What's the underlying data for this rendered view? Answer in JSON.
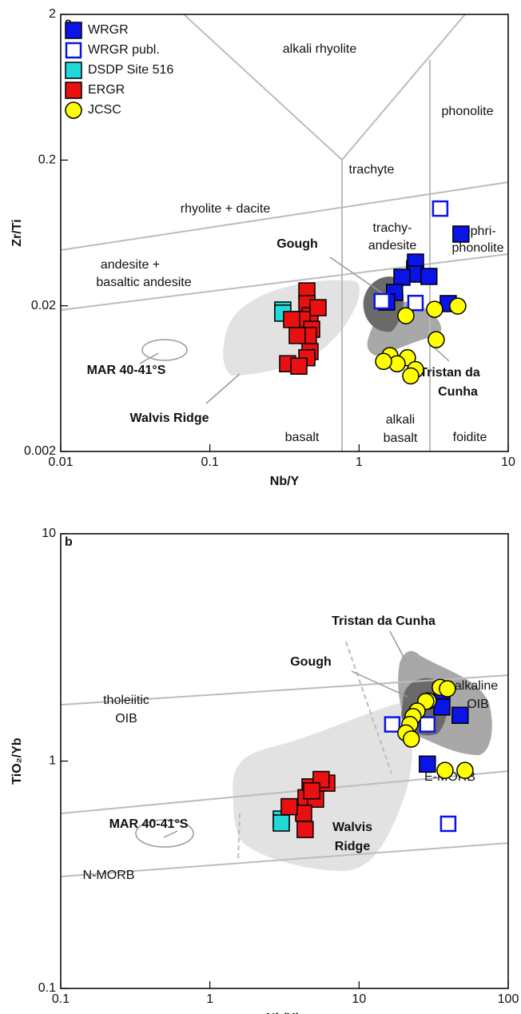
{
  "chart_data": [
    {
      "type": "scatter",
      "panel": "a",
      "xlabel": "Nb/Y",
      "ylabel": "Zr/Ti",
      "xscale": "log",
      "yscale": "log",
      "xlim": [
        0.01,
        10
      ],
      "ylim": [
        0.002,
        2
      ],
      "xticks": [
        0.01,
        0.1,
        1,
        10
      ],
      "yticks": [
        0.002,
        0.02,
        0.2,
        2
      ],
      "legend": "upper left",
      "annotations": [
        "alkali rhyolite",
        "phonolite",
        "trachyte",
        "rhyolite + dacite",
        "trachy-",
        "andesite",
        "tephri-",
        "phonolite",
        "andesite +",
        "basaltic andesite",
        "Gough",
        "MAR 40-41°S",
        "Walvis Ridge",
        "Tristan da",
        "Cunha",
        "basalt",
        "alkali",
        "basalt",
        "foidite"
      ],
      "series": [
        {
          "name": "WRGR",
          "marker": "square",
          "color": "#0a14e6",
          "x": [
            4.82,
            2.36,
            2.39,
            2.39,
            2.94,
            1.94,
            1.73,
            1.53,
            3.96
          ],
          "values": [
            0.0621,
            0.036,
            0.0399,
            0.033,
            0.0318,
            0.0314,
            0.0247,
            0.0212,
            0.0207
          ]
        },
        {
          "name": "WRGR publ.",
          "marker": "open-square",
          "color": "#0a14e6",
          "x": [
            3.5,
            1.42,
            2.39
          ],
          "values": [
            0.0929,
            0.0215,
            0.0209
          ]
        },
        {
          "name": "DSDP Site 516",
          "marker": "square",
          "color": "#22d8d8",
          "x": [
            0.308,
            0.308
          ],
          "values": [
            0.0187,
            0.0178
          ]
        },
        {
          "name": "ERGR",
          "marker": "square",
          "color": "#e81010",
          "x": [
            0.447,
            0.447,
            0.469,
            0.415,
            0.481,
            0.457,
            0.469,
            0.447,
            0.332,
            0.395,
            0.531,
            0.385,
            0.353
          ],
          "values": [
            0.0253,
            0.0207,
            0.0171,
            0.0161,
            0.0138,
            0.0125,
            0.0097,
            0.0088,
            0.008,
            0.0077,
            0.0194,
            0.0125,
            0.0161
          ]
        },
        {
          "name": "JCSC",
          "marker": "circle",
          "color": "#ffff00",
          "x": [
            4.59,
            2.06,
            3.21,
            3.29,
            1.61,
            2.11,
            1.8,
            2.39,
            2.22,
            1.46
          ],
          "values": [
            0.0199,
            0.0171,
            0.0189,
            0.0117,
            0.0091,
            0.0088,
            0.008,
            0.0073,
            0.0066,
            0.0083
          ]
        }
      ]
    },
    {
      "type": "scatter",
      "panel": "b",
      "xlabel": "Nb/Yb",
      "ylabel": "TiO₂/Yb",
      "xscale": "log",
      "yscale": "log",
      "xlim": [
        0.1,
        100
      ],
      "ylim": [
        0.1,
        10
      ],
      "xticks": [
        0.1,
        1,
        10,
        100
      ],
      "yticks": [
        0.1,
        1,
        10
      ],
      "annotations": [
        "Tristan da Cunha",
        "Gough",
        "alkaline",
        "OIB",
        "tholeiitic",
        "OIB",
        "E-MORB",
        "MAR 40-41°S",
        "N-MORB",
        "Walvis",
        "Ridge"
      ],
      "series": [
        {
          "marker": "square",
          "color": "#0a14e6",
          "x": [
            35.9,
            35.9,
            47.6,
            28.7
          ],
          "values": [
            2.01,
            1.73,
            1.59,
            0.97
          ]
        },
        {
          "marker": "open-square",
          "color": "#0a14e6",
          "x": [
            16.7,
            28.7,
            39.6
          ],
          "values": [
            1.45,
            1.45,
            0.53
          ]
        },
        {
          "marker": "square",
          "color": "#22d8d8",
          "x": [
            3.01,
            3.01
          ],
          "values": [
            0.556,
            0.534
          ]
        },
        {
          "marker": "square",
          "color": "#e81010",
          "x": [
            6.08,
            4.69,
            4.41,
            5.11,
            4.25,
            4.35,
            3.4,
            5.57,
            4.81
          ],
          "values": [
            0.8,
            0.77,
            0.69,
            0.68,
            0.59,
            0.5,
            0.63,
            0.83,
            0.74
          ]
        },
        {
          "marker": "circle",
          "color": "#ffff00",
          "x": [
            35.0,
            39.1,
            29.1,
            28.0,
            24.5,
            23.0,
            21.9,
            20.6,
            22.4,
            37.7,
            51.3
          ],
          "values": [
            2.11,
            2.08,
            1.84,
            1.83,
            1.66,
            1.57,
            1.45,
            1.33,
            1.25,
            0.91,
            0.91
          ]
        }
      ]
    }
  ]
}
